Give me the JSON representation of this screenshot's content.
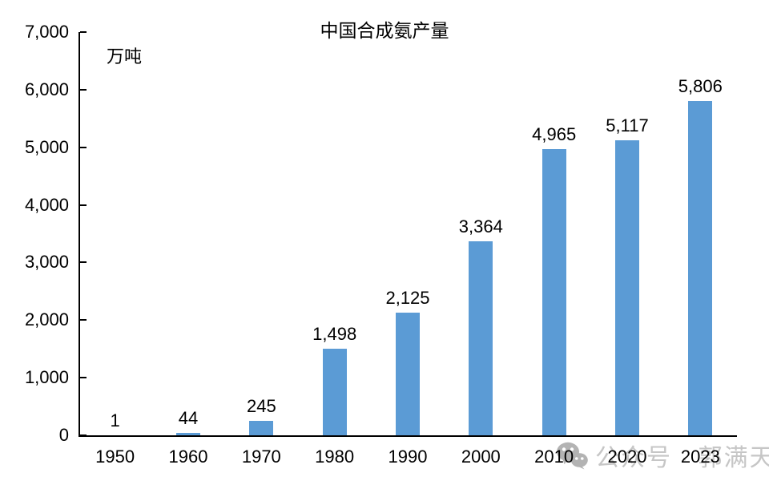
{
  "chart_data": {
    "type": "bar",
    "title": "中国合成氨产量",
    "unit_label": "万吨",
    "categories": [
      "1950",
      "1960",
      "1970",
      "1980",
      "1990",
      "2000",
      "2010",
      "2020",
      "2023"
    ],
    "values": [
      1,
      44,
      245,
      1498,
      2125,
      3364,
      4965,
      5117,
      5806
    ],
    "value_labels": [
      "1",
      "44",
      "245",
      "1,498",
      "2,125",
      "3,364",
      "4,965",
      "5,117",
      "5,806"
    ],
    "ylabel": "万吨",
    "xlabel": "",
    "ylim": [
      0,
      7000
    ],
    "ytick_step": 1000,
    "ytick_labels": [
      "0",
      "1,000",
      "2,000",
      "3,000",
      "4,000",
      "5,000",
      "6,000",
      "7,000"
    ],
    "grid": false,
    "legend": "none",
    "bar_color": "#5B9BD5",
    "axis_color": "#000000",
    "text_color": "#000000"
  },
  "watermark": {
    "icon": "wechat-icon",
    "text": "公众号 · 郭满天",
    "color": "#c6c6c6",
    "icon_color": "#b3b3b3"
  }
}
